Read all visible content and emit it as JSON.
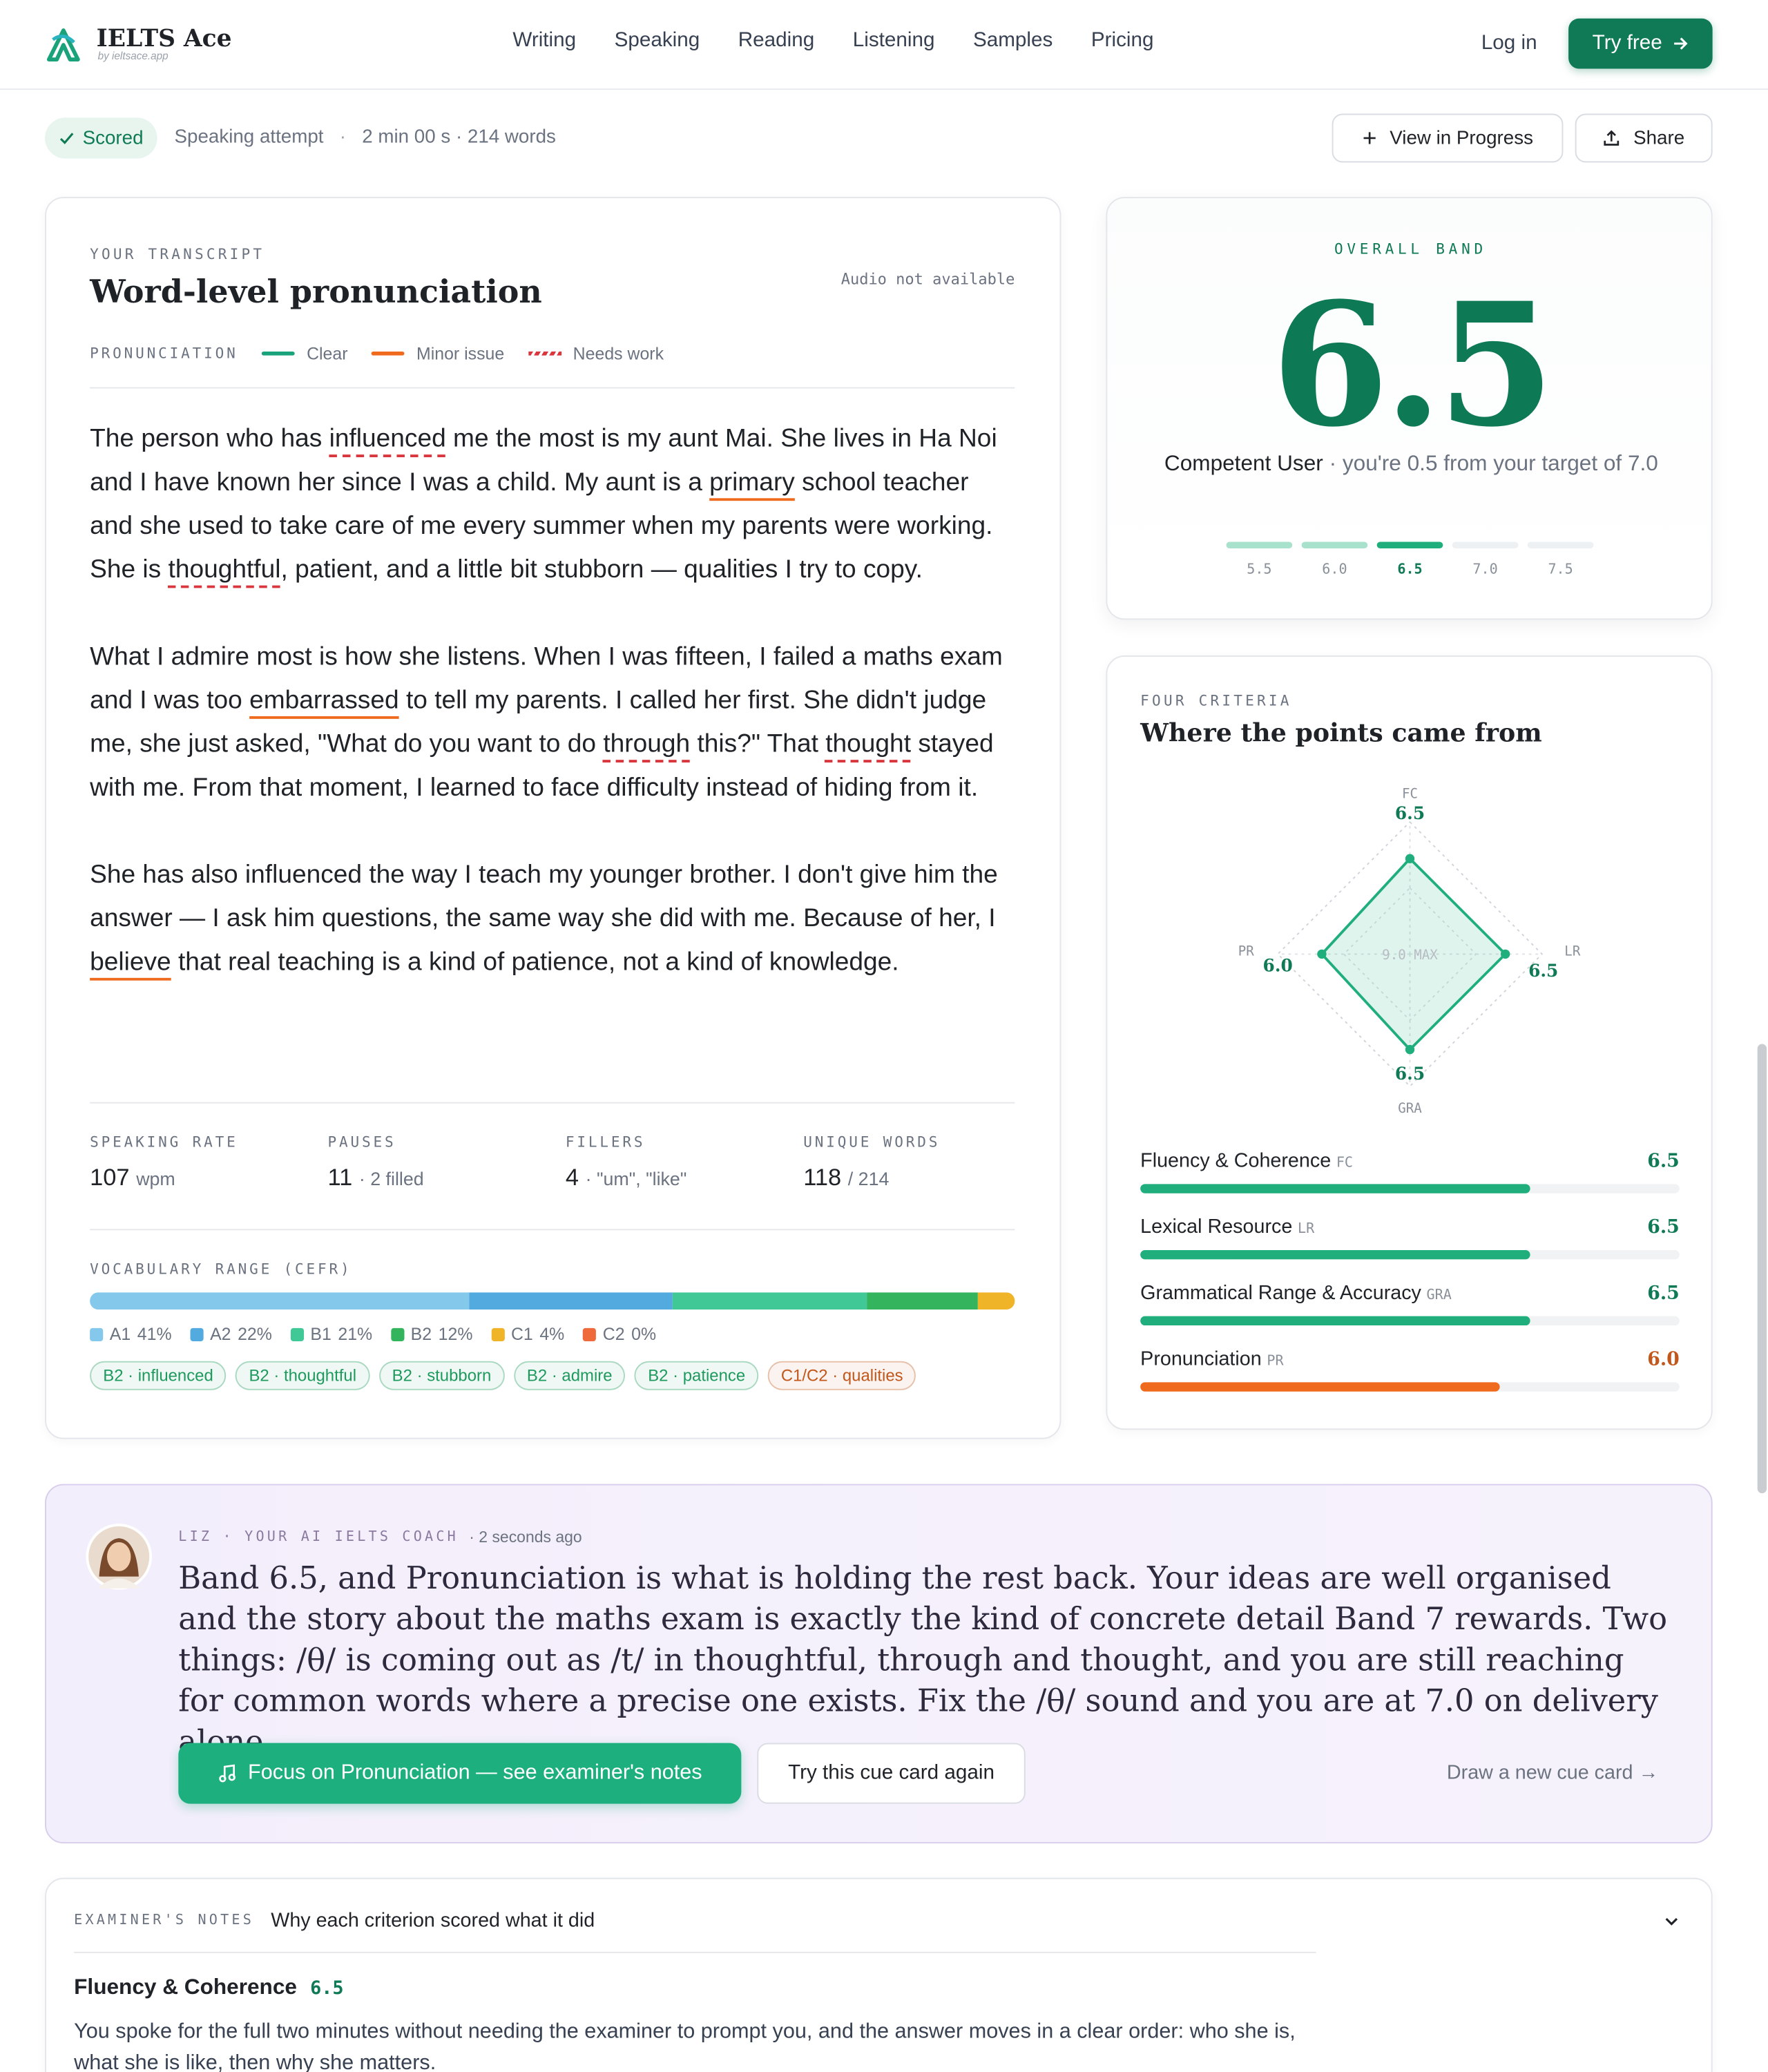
{
  "brand": {
    "name": "IELTS Ace",
    "tagline": "by ieltsace.app"
  },
  "nav": [
    "Writing",
    "Speaking",
    "Reading",
    "Listening",
    "Samples",
    "Pricing"
  ],
  "actions": {
    "login": "Log in",
    "try": "Try free"
  },
  "status": {
    "badge": "Scored",
    "kind": "Speaking attempt",
    "sep": "·",
    "meta": "2 min 00 s · 214 words"
  },
  "toolbar": {
    "progress": "View in Progress",
    "share": "Share"
  },
  "transcript": {
    "eyebrow": "YOUR TRANSCRIPT",
    "title": "Word-level pronunciation",
    "audio": "Audio not available",
    "legend_label": "PRONUNCIATION",
    "legend": [
      {
        "name": "Clear",
        "color": "#1aa37a",
        "style": "solid"
      },
      {
        "name": "Minor issue",
        "color": "#f06a1d",
        "style": "solid"
      },
      {
        "name": "Needs work",
        "color": "#d9363e",
        "style": "dashed"
      }
    ],
    "paragraphs": [
      [
        "The person who has ",
        {
          "word": "influenced",
          "issue": "Needs work"
        },
        " me the most is my aunt Mai. She lives in Ha Noi and I have known her since I was a child. My aunt is a ",
        {
          "word": "primary",
          "issue": "Minor issue"
        },
        " school teacher and she used to take care of me every summer when my parents were working. She is ",
        {
          "word": "thoughtful",
          "issue": "Needs work"
        },
        ", patient, and a little bit stubborn — qualities I try to copy."
      ],
      [
        "What I admire most is how she listens. When I was fifteen, I failed a maths exam and I was too ",
        {
          "word": "embarrassed",
          "issue": "Minor issue"
        },
        " to tell my parents. I called her first. She didn't judge me, she just asked, \"What do you want to do ",
        {
          "word": "through",
          "issue": "Needs work"
        },
        " this?\" That ",
        {
          "word": "thought",
          "issue": "Needs work"
        },
        " stayed with me. From that moment, I learned to face difficulty instead of hiding from it."
      ],
      [
        "She has also influenced the way I teach my younger brother. I don't give him the answer — I ask him questions, the same way she did with me. Because of her, I ",
        {
          "word": "believe",
          "issue": "Minor issue"
        },
        " that real teaching is a kind of patience, not a kind of knowledge."
      ]
    ],
    "stats": [
      {
        "label": "SPEAKING RATE",
        "value": 107,
        "note": "wpm"
      },
      {
        "label": "PAUSES",
        "value": 11,
        "note": "· 2 filled"
      },
      {
        "label": "FILLERS",
        "value": 4,
        "note": "· \"um\", \"like\""
      },
      {
        "label": "UNIQUE WORDS",
        "value": 118,
        "note": "/ 214"
      }
    ],
    "vocab": {
      "label": "VOCABULARY RANGE (CEFR)",
      "levels": [
        {
          "name": "A1",
          "value": 41,
          "value_label": "41%",
          "color": "#84c8ec"
        },
        {
          "name": "A2",
          "value": 22,
          "value_label": "22%",
          "color": "#53aadf"
        },
        {
          "name": "B1",
          "value": 21,
          "value_label": "21%",
          "color": "#40c997"
        },
        {
          "name": "B2",
          "value": 12,
          "value_label": "12%",
          "color": "#33b45d"
        },
        {
          "name": "C1",
          "value": 4,
          "value_label": "4%",
          "color": "#f0b429"
        },
        {
          "name": "C2",
          "value": 0,
          "value_label": "0%",
          "color": "#ee6a3a"
        }
      ],
      "chips": [
        {
          "text": "B2 · influenced",
          "color": "#1f9a5e"
        },
        {
          "text": "B2 · thoughtful",
          "color": "#1f9a5e"
        },
        {
          "text": "B2 · stubborn",
          "color": "#1f9a5e"
        },
        {
          "text": "B2 · admire",
          "color": "#1f9a5e"
        },
        {
          "text": "B2 · patience",
          "color": "#1f9a5e"
        },
        {
          "text": "C1/C2 · qualities",
          "color": "#c2571c"
        }
      ]
    }
  },
  "overall": {
    "eyebrow": "OVERALL BAND",
    "band": 6.5,
    "descriptor": "Competent User",
    "note": "· you're 0.5 from your target of 7.0",
    "scale": [
      {
        "value": 5.5,
        "label": "5.5"
      },
      {
        "value": 6.0,
        "label": "6.0"
      },
      {
        "value": 6.5,
        "label": "6.5"
      },
      {
        "value": 7.0,
        "label": "7.0"
      },
      {
        "value": 7.5,
        "label": "7.5"
      }
    ]
  },
  "criteria_card": {
    "eyebrow": "FOUR CRITERIA",
    "title": "Where the points came from",
    "radar": {
      "rlim": [
        0,
        9
      ],
      "max_label": "9.0 MAX"
    },
    "xlim": [
      0,
      9
    ],
    "criteria": [
      {
        "name": "Fluency & Coherence",
        "abbr": "FC",
        "value": 6.5,
        "label": "6.5",
        "color": "#1fae7c"
      },
      {
        "name": "Lexical Resource",
        "abbr": "LR",
        "value": 6.5,
        "label": "6.5",
        "color": "#1fae7c"
      },
      {
        "name": "Grammatical Range & Accuracy",
        "abbr": "GRA",
        "value": 6.5,
        "label": "6.5",
        "color": "#1fae7c"
      },
      {
        "name": "Pronunciation",
        "abbr": "PR",
        "value": 6.0,
        "label": "6.0",
        "color": "#f06a1d"
      }
    ]
  },
  "coach": {
    "name": "LIZ",
    "sep": "·",
    "role": "YOUR AI IELTS COACH",
    "time": "· 2 seconds ago",
    "message": "Band 6.5, and Pronunciation is what is holding the rest back. Your ideas are well organised and the story about the maths exam is exactly the kind of concrete detail Band 7 rewards. Two things: /θ/ is coming out as /t/ in thoughtful, through and thought, and you are still reaching for common words where a precise one exists. Fix the /θ/ sound and you are at 7.0 on delivery alone.",
    "primary": "Focus on Pronunciation — see examiner's notes",
    "secondary": "Try this cue card again",
    "link": "Draw a new cue card →"
  },
  "notes": {
    "eyebrow": "EXAMINER'S NOTES",
    "title": "Why each criterion scored what it did",
    "section": {
      "name": "Fluency & Coherence",
      "score": "6.5",
      "text": "You spoke for the full two minutes without needing the examiner to prompt you, and the answer moves in a clear order: who she is, what she is like, then why she matters."
    }
  }
}
